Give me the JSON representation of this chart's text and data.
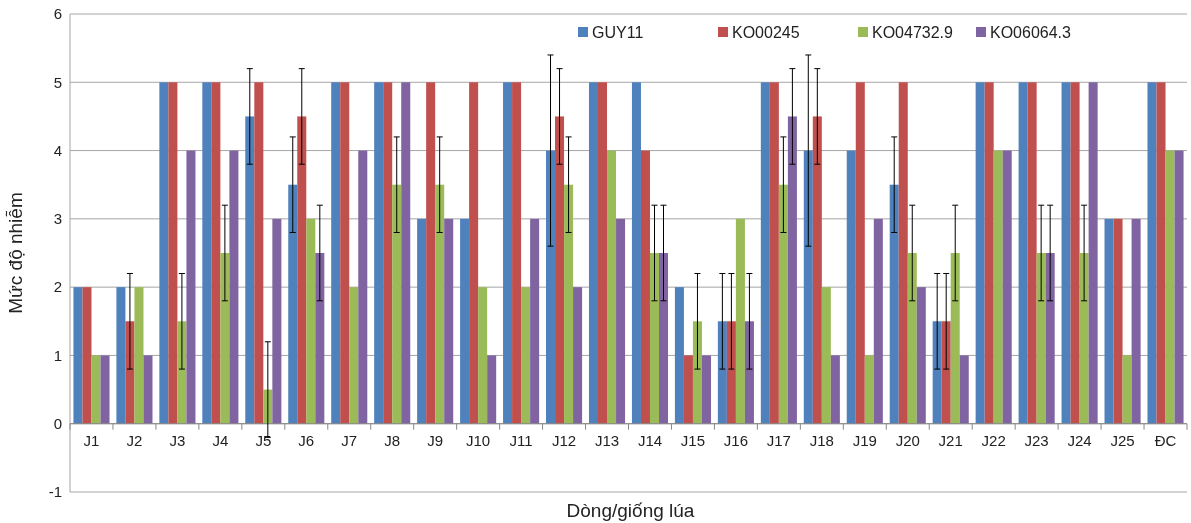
{
  "chart_data": {
    "type": "bar",
    "xlabel": "Dòng/giống lúa",
    "ylabel": "Mức độ nhiễm",
    "categories": [
      "J1",
      "J2",
      "J3",
      "J4",
      "J5",
      "J6",
      "J7",
      "J8",
      "J9",
      "J10",
      "J11",
      "J12",
      "J13",
      "J14",
      "J15",
      "J16",
      "J17",
      "J18",
      "J19",
      "J20",
      "J21",
      "J22",
      "J23",
      "J24",
      "J25",
      "ĐC"
    ],
    "series": [
      {
        "name": "GUY11",
        "color": "#4f81bd",
        "values": [
          2,
          2,
          5,
          5,
          4.5,
          3.5,
          5,
          5,
          3,
          3,
          5,
          4,
          5,
          5,
          2,
          1.5,
          5,
          4,
          4,
          3.5,
          1.5,
          5,
          5,
          5,
          3,
          5
        ],
        "errors": [
          null,
          null,
          null,
          null,
          0.7,
          0.7,
          null,
          null,
          null,
          null,
          null,
          1.4,
          null,
          null,
          null,
          0.7,
          null,
          1.4,
          null,
          0.7,
          0.7,
          null,
          null,
          null,
          null,
          null
        ]
      },
      {
        "name": "KO00245",
        "color": "#c0504d",
        "values": [
          2,
          1.5,
          5,
          5,
          5,
          4.5,
          5,
          5,
          5,
          5,
          5,
          4.5,
          5,
          4,
          1,
          1.5,
          5,
          4.5,
          5,
          5,
          1.5,
          5,
          5,
          5,
          3,
          5
        ],
        "errors": [
          null,
          0.7,
          null,
          null,
          null,
          0.7,
          null,
          null,
          null,
          null,
          null,
          0.7,
          null,
          null,
          null,
          0.7,
          null,
          0.7,
          null,
          null,
          0.7,
          null,
          null,
          null,
          null,
          null
        ]
      },
      {
        "name": "KO04732.9",
        "color": "#9bbb59",
        "values": [
          1,
          2,
          1.5,
          2.5,
          0.5,
          3,
          2,
          3.5,
          3.5,
          2,
          2,
          3.5,
          4,
          2.5,
          1.5,
          3,
          3.5,
          2,
          1,
          2.5,
          2.5,
          4,
          2.5,
          2.5,
          1,
          4
        ],
        "errors": [
          null,
          null,
          0.7,
          0.7,
          0.7,
          null,
          null,
          0.7,
          0.7,
          null,
          null,
          0.7,
          null,
          0.7,
          0.7,
          null,
          0.7,
          null,
          null,
          0.7,
          0.7,
          null,
          0.7,
          0.7,
          null,
          null
        ]
      },
      {
        "name": "KO06064.3",
        "color": "#8064a2",
        "values": [
          1,
          1,
          4,
          4,
          3,
          2.5,
          4,
          5,
          3,
          1,
          3,
          2,
          3,
          2.5,
          1,
          1.5,
          4.5,
          1,
          3,
          2,
          1,
          4,
          2.5,
          5,
          3,
          4
        ],
        "errors": [
          null,
          null,
          null,
          null,
          null,
          0.7,
          null,
          null,
          null,
          null,
          null,
          null,
          null,
          0.7,
          null,
          0.7,
          0.7,
          null,
          null,
          null,
          null,
          null,
          0.7,
          null,
          null,
          null
        ]
      }
    ],
    "ylim": [
      -1,
      6
    ],
    "yticks": [
      -1,
      0,
      1,
      2,
      3,
      4,
      5,
      6
    ],
    "grid": "y",
    "legend": "top right"
  }
}
